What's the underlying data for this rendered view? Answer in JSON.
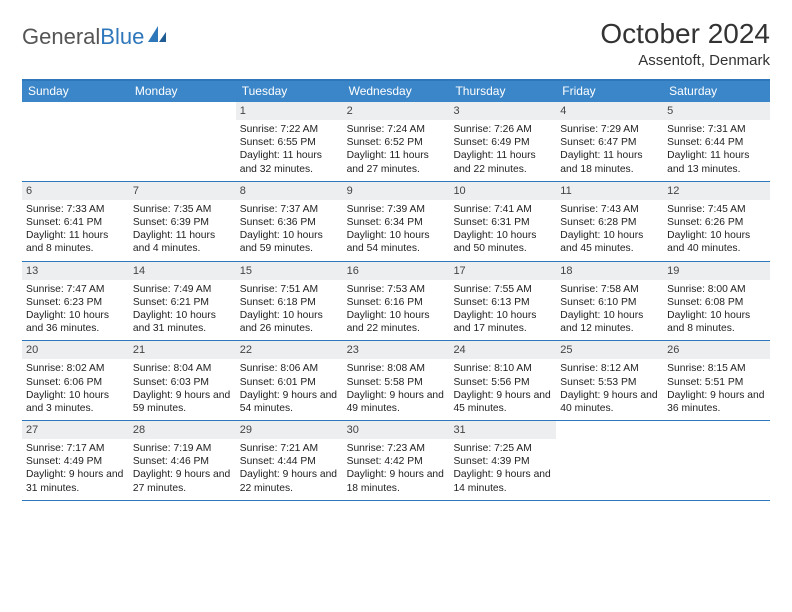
{
  "logo": {
    "part1": "General",
    "part2": "Blue"
  },
  "title": "October 2024",
  "subtitle": "Assentoft, Denmark",
  "colors": {
    "header_bg": "#3b86c8",
    "header_border": "#2f77bb",
    "daynum_bg": "#eceef0",
    "text": "#222222",
    "page_bg": "#ffffff"
  },
  "typography": {
    "title_fontsize": 28,
    "subtitle_fontsize": 15,
    "dayhead_fontsize": 12,
    "cell_fontsize": 10.3
  },
  "day_names": [
    "Sunday",
    "Monday",
    "Tuesday",
    "Wednesday",
    "Thursday",
    "Friday",
    "Saturday"
  ],
  "weeks": [
    [
      {
        "empty": true
      },
      {
        "empty": true
      },
      {
        "day": "1",
        "sunrise": "Sunrise: 7:22 AM",
        "sunset": "Sunset: 6:55 PM",
        "daylight": "Daylight: 11 hours and 32 minutes."
      },
      {
        "day": "2",
        "sunrise": "Sunrise: 7:24 AM",
        "sunset": "Sunset: 6:52 PM",
        "daylight": "Daylight: 11 hours and 27 minutes."
      },
      {
        "day": "3",
        "sunrise": "Sunrise: 7:26 AM",
        "sunset": "Sunset: 6:49 PM",
        "daylight": "Daylight: 11 hours and 22 minutes."
      },
      {
        "day": "4",
        "sunrise": "Sunrise: 7:29 AM",
        "sunset": "Sunset: 6:47 PM",
        "daylight": "Daylight: 11 hours and 18 minutes."
      },
      {
        "day": "5",
        "sunrise": "Sunrise: 7:31 AM",
        "sunset": "Sunset: 6:44 PM",
        "daylight": "Daylight: 11 hours and 13 minutes."
      }
    ],
    [
      {
        "day": "6",
        "sunrise": "Sunrise: 7:33 AM",
        "sunset": "Sunset: 6:41 PM",
        "daylight": "Daylight: 11 hours and 8 minutes."
      },
      {
        "day": "7",
        "sunrise": "Sunrise: 7:35 AM",
        "sunset": "Sunset: 6:39 PM",
        "daylight": "Daylight: 11 hours and 4 minutes."
      },
      {
        "day": "8",
        "sunrise": "Sunrise: 7:37 AM",
        "sunset": "Sunset: 6:36 PM",
        "daylight": "Daylight: 10 hours and 59 minutes."
      },
      {
        "day": "9",
        "sunrise": "Sunrise: 7:39 AM",
        "sunset": "Sunset: 6:34 PM",
        "daylight": "Daylight: 10 hours and 54 minutes."
      },
      {
        "day": "10",
        "sunrise": "Sunrise: 7:41 AM",
        "sunset": "Sunset: 6:31 PM",
        "daylight": "Daylight: 10 hours and 50 minutes."
      },
      {
        "day": "11",
        "sunrise": "Sunrise: 7:43 AM",
        "sunset": "Sunset: 6:28 PM",
        "daylight": "Daylight: 10 hours and 45 minutes."
      },
      {
        "day": "12",
        "sunrise": "Sunrise: 7:45 AM",
        "sunset": "Sunset: 6:26 PM",
        "daylight": "Daylight: 10 hours and 40 minutes."
      }
    ],
    [
      {
        "day": "13",
        "sunrise": "Sunrise: 7:47 AM",
        "sunset": "Sunset: 6:23 PM",
        "daylight": "Daylight: 10 hours and 36 minutes."
      },
      {
        "day": "14",
        "sunrise": "Sunrise: 7:49 AM",
        "sunset": "Sunset: 6:21 PM",
        "daylight": "Daylight: 10 hours and 31 minutes."
      },
      {
        "day": "15",
        "sunrise": "Sunrise: 7:51 AM",
        "sunset": "Sunset: 6:18 PM",
        "daylight": "Daylight: 10 hours and 26 minutes."
      },
      {
        "day": "16",
        "sunrise": "Sunrise: 7:53 AM",
        "sunset": "Sunset: 6:16 PM",
        "daylight": "Daylight: 10 hours and 22 minutes."
      },
      {
        "day": "17",
        "sunrise": "Sunrise: 7:55 AM",
        "sunset": "Sunset: 6:13 PM",
        "daylight": "Daylight: 10 hours and 17 minutes."
      },
      {
        "day": "18",
        "sunrise": "Sunrise: 7:58 AM",
        "sunset": "Sunset: 6:10 PM",
        "daylight": "Daylight: 10 hours and 12 minutes."
      },
      {
        "day": "19",
        "sunrise": "Sunrise: 8:00 AM",
        "sunset": "Sunset: 6:08 PM",
        "daylight": "Daylight: 10 hours and 8 minutes."
      }
    ],
    [
      {
        "day": "20",
        "sunrise": "Sunrise: 8:02 AM",
        "sunset": "Sunset: 6:06 PM",
        "daylight": "Daylight: 10 hours and 3 minutes."
      },
      {
        "day": "21",
        "sunrise": "Sunrise: 8:04 AM",
        "sunset": "Sunset: 6:03 PM",
        "daylight": "Daylight: 9 hours and 59 minutes."
      },
      {
        "day": "22",
        "sunrise": "Sunrise: 8:06 AM",
        "sunset": "Sunset: 6:01 PM",
        "daylight": "Daylight: 9 hours and 54 minutes."
      },
      {
        "day": "23",
        "sunrise": "Sunrise: 8:08 AM",
        "sunset": "Sunset: 5:58 PM",
        "daylight": "Daylight: 9 hours and 49 minutes."
      },
      {
        "day": "24",
        "sunrise": "Sunrise: 8:10 AM",
        "sunset": "Sunset: 5:56 PM",
        "daylight": "Daylight: 9 hours and 45 minutes."
      },
      {
        "day": "25",
        "sunrise": "Sunrise: 8:12 AM",
        "sunset": "Sunset: 5:53 PM",
        "daylight": "Daylight: 9 hours and 40 minutes."
      },
      {
        "day": "26",
        "sunrise": "Sunrise: 8:15 AM",
        "sunset": "Sunset: 5:51 PM",
        "daylight": "Daylight: 9 hours and 36 minutes."
      }
    ],
    [
      {
        "day": "27",
        "sunrise": "Sunrise: 7:17 AM",
        "sunset": "Sunset: 4:49 PM",
        "daylight": "Daylight: 9 hours and 31 minutes."
      },
      {
        "day": "28",
        "sunrise": "Sunrise: 7:19 AM",
        "sunset": "Sunset: 4:46 PM",
        "daylight": "Daylight: 9 hours and 27 minutes."
      },
      {
        "day": "29",
        "sunrise": "Sunrise: 7:21 AM",
        "sunset": "Sunset: 4:44 PM",
        "daylight": "Daylight: 9 hours and 22 minutes."
      },
      {
        "day": "30",
        "sunrise": "Sunrise: 7:23 AM",
        "sunset": "Sunset: 4:42 PM",
        "daylight": "Daylight: 9 hours and 18 minutes."
      },
      {
        "day": "31",
        "sunrise": "Sunrise: 7:25 AM",
        "sunset": "Sunset: 4:39 PM",
        "daylight": "Daylight: 9 hours and 14 minutes."
      },
      {
        "empty": true
      },
      {
        "empty": true
      }
    ]
  ]
}
